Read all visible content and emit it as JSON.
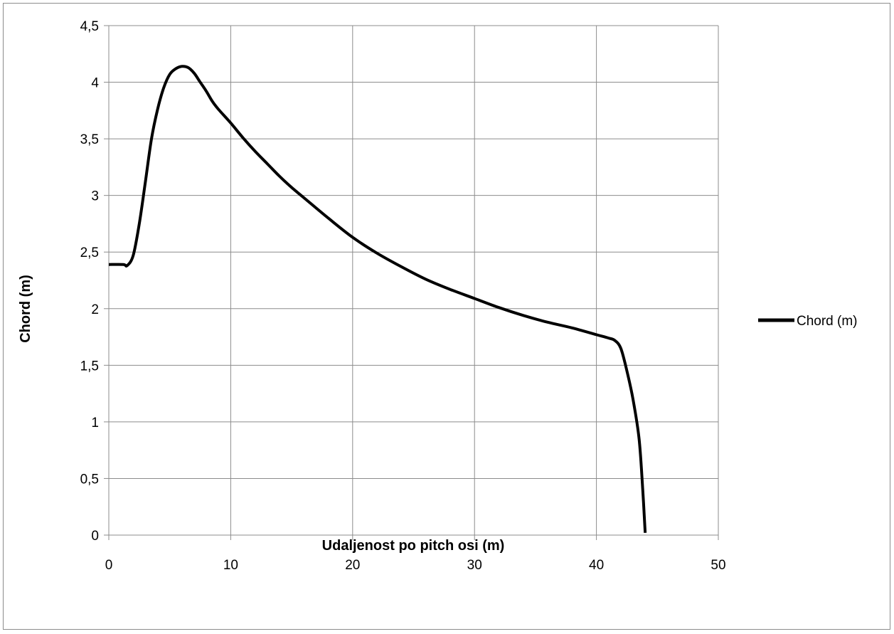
{
  "chart_data": {
    "type": "line",
    "xlabel": "Udaljenost po pitch osi (m)",
    "ylabel": "Chord (m)",
    "xlim": [
      0,
      50
    ],
    "ylim": [
      0,
      4.5
    ],
    "x_ticks": [
      "0",
      "10",
      "20",
      "30",
      "40",
      "50"
    ],
    "y_ticks": [
      "0",
      "0,5",
      "1",
      "1,5",
      "2",
      "2,5",
      "3",
      "3,5",
      "4",
      "4,5"
    ],
    "grid": true,
    "legend_position": "right",
    "series": [
      {
        "name": "Chord (m)",
        "color": "#000000",
        "x": [
          0,
          1.2,
          1.5,
          2.0,
          2.5,
          3.0,
          3.5,
          4.0,
          4.5,
          5.0,
          5.5,
          6.0,
          6.5,
          7.0,
          7.5,
          8.0,
          8.5,
          9.0,
          10.0,
          11.0,
          12.0,
          13.0,
          14.0,
          15.0,
          16.0,
          18.0,
          20.0,
          22.0,
          24.0,
          26.0,
          28.0,
          30.0,
          32.0,
          34.0,
          36.0,
          38.0,
          40.0,
          41.0,
          41.5,
          42.0,
          42.5,
          43.0,
          43.5,
          43.8,
          44.0
        ],
        "values": [
          2.39,
          2.39,
          2.38,
          2.47,
          2.75,
          3.12,
          3.5,
          3.76,
          3.95,
          4.07,
          4.12,
          4.14,
          4.13,
          4.08,
          4.0,
          3.92,
          3.83,
          3.76,
          3.64,
          3.51,
          3.39,
          3.28,
          3.17,
          3.07,
          2.98,
          2.8,
          2.63,
          2.49,
          2.37,
          2.26,
          2.17,
          2.09,
          2.01,
          1.94,
          1.88,
          1.83,
          1.77,
          1.74,
          1.72,
          1.65,
          1.45,
          1.2,
          0.85,
          0.4,
          0.02
        ]
      }
    ]
  }
}
